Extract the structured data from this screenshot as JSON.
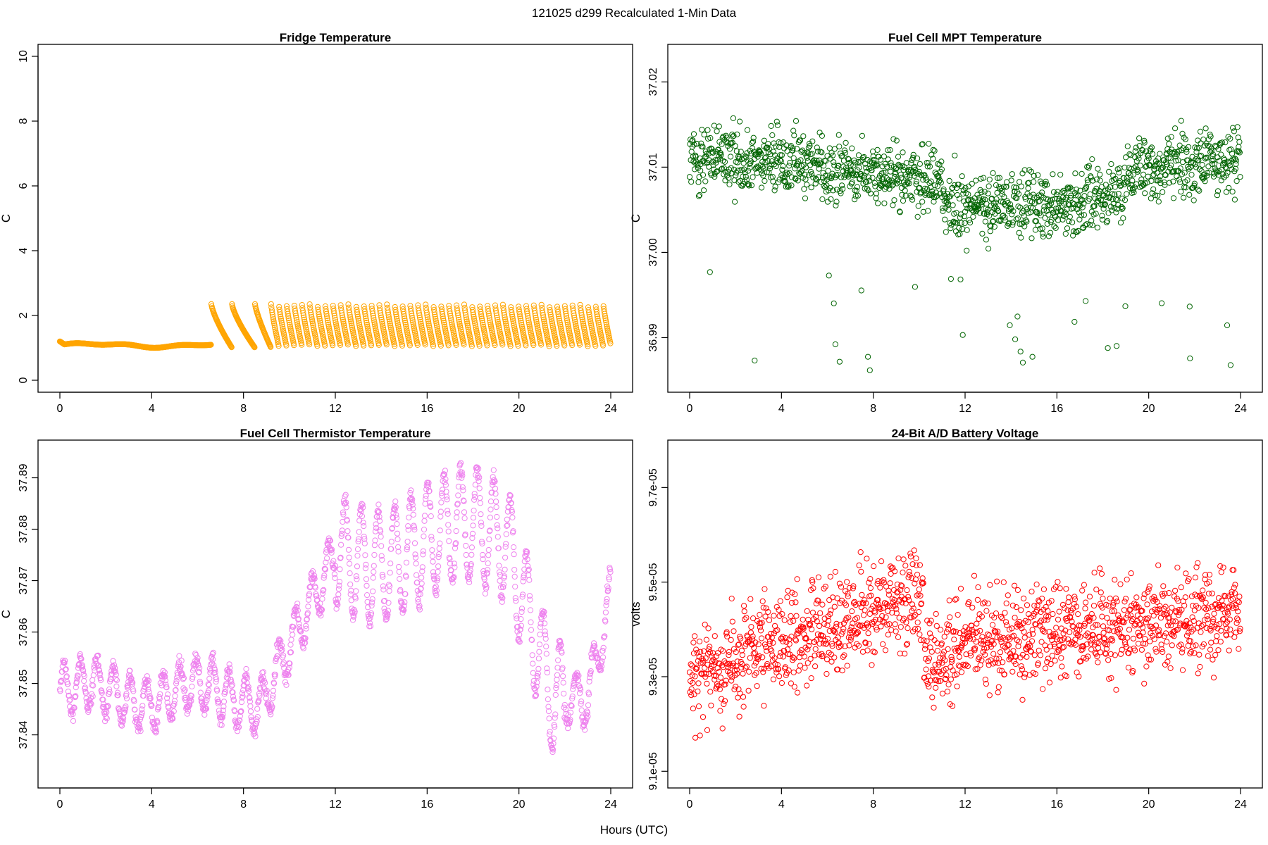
{
  "figure": {
    "title": "121025   d299   Recalculated 1-Min Data",
    "xlabel": "Hours (UTC)"
  },
  "chart_data": [
    {
      "id": "fridge",
      "type": "scatter",
      "title": "Fridge Temperature",
      "xlabel": "",
      "ylabel": "C",
      "color": "#FFA500",
      "xlim": [
        0,
        24
      ],
      "ylim": [
        0,
        10
      ],
      "xticks": [
        0,
        4,
        8,
        12,
        16,
        20,
        24
      ],
      "yticks": [
        0,
        2,
        4,
        6,
        8,
        10
      ],
      "ytick_labels": [
        "0",
        "2",
        "4",
        "6",
        "8",
        "10"
      ],
      "series": [
        {
          "name": "fridge_temp",
          "pattern": "stable ~1.0-1.2 C until 6.6 h, then sawtooth cycles 1.0 to 2.35 C (~0.33 h period) to 24 h"
        }
      ],
      "x": [],
      "y": []
    },
    {
      "id": "mpt",
      "type": "scatter",
      "title": "Fuel Cell MPT Temperature",
      "xlabel": "",
      "ylabel": "C",
      "color": "#006400",
      "xlim": [
        0,
        24
      ],
      "ylim": [
        36.985,
        37.023
      ],
      "xticks": [
        0,
        4,
        8,
        12,
        16,
        20,
        24
      ],
      "yticks": [
        36.99,
        37.0,
        37.01,
        37.02
      ],
      "ytick_labels": [
        "36.99",
        "37.00",
        "37.01",
        "37.02"
      ],
      "series": [
        {
          "name": "mpt_temp",
          "pattern": "noisy around 37.009-37.011 C, dipping to ~37.006 C near 12-18 h, outliers down to 36.985"
        }
      ],
      "x": [],
      "y": []
    },
    {
      "id": "thermistor",
      "type": "scatter",
      "title": "Fuel Cell Thermistor Temperature",
      "xlabel": "",
      "ylabel": "C",
      "color": "#EE82EE",
      "xlim": [
        0,
        24
      ],
      "ylim": [
        37.832,
        37.895
      ],
      "xticks": [
        0,
        4,
        8,
        12,
        16,
        20,
        24
      ],
      "yticks": [
        37.84,
        37.85,
        37.86,
        37.87,
        37.88,
        37.89
      ],
      "ytick_labels": [
        "37.84",
        "37.85",
        "37.86",
        "37.87",
        "37.88",
        "37.89"
      ],
      "series": [
        {
          "name": "thermistor_temp",
          "pattern": "~37.848 C 0-9 h, rising to ~37.875-37.89 C at 12-19 h, oscillating, falling to ~37.845 C at 21-23 h, up to 37.868 at 24 h"
        }
      ],
      "x": [],
      "y": []
    },
    {
      "id": "battery",
      "type": "scatter",
      "title": "24-Bit A/D Battery Voltage",
      "xlabel": "",
      "ylabel": "volts",
      "color": "#FF0000",
      "xlim": [
        0,
        24
      ],
      "ylim": [
        9.09e-05,
        9.775e-05
      ],
      "xticks": [
        0,
        4,
        8,
        12,
        16,
        20,
        24
      ],
      "yticks": [
        9.1e-05,
        9.3e-05,
        9.5e-05,
        9.7e-05
      ],
      "ytick_labels": [
        "9.1e-05",
        "9.3e-05",
        "9.5e-05",
        "9.7e-05"
      ],
      "series": [
        {
          "name": "battery_voltage",
          "pattern": "noisy ~9.3e-05 at 0 h rising to ~9.48e-05 near 8-10 h, drop to ~9.32e-05 at 11 h, ~9.42e-05 to 24 h"
        }
      ],
      "x": [],
      "y": []
    }
  ]
}
